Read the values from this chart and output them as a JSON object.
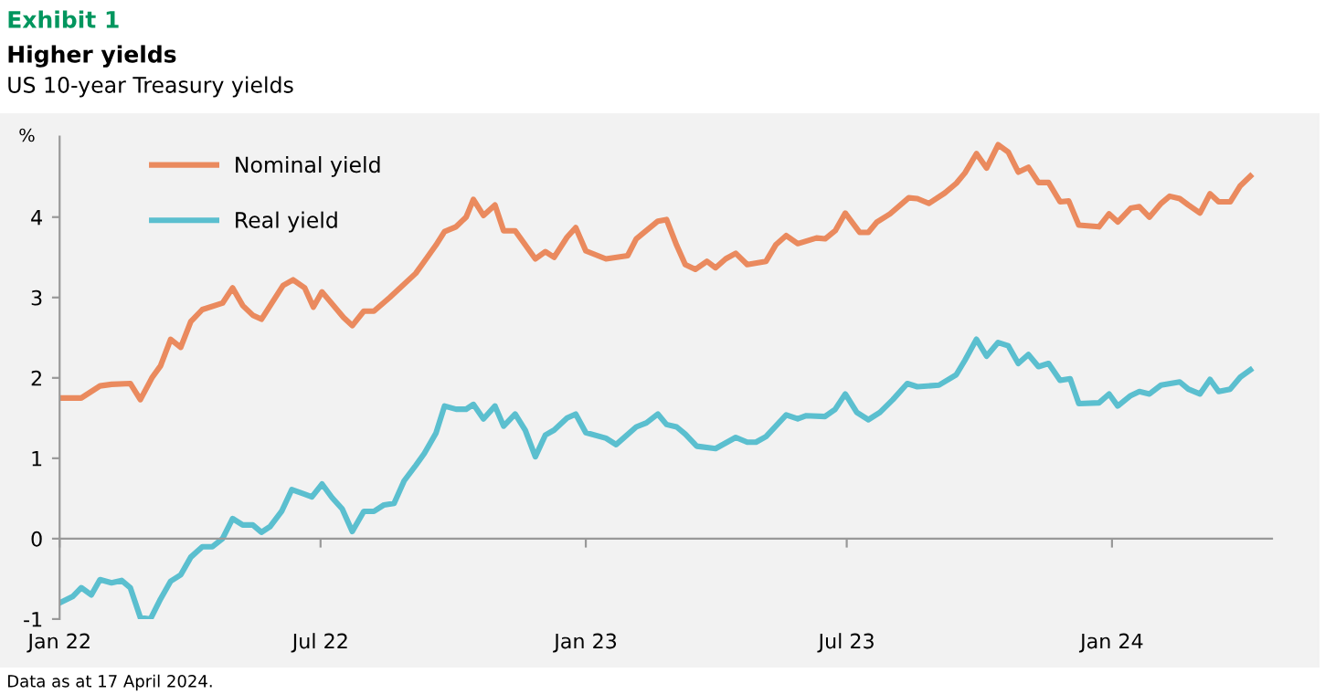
{
  "chart_data": {
    "type": "line",
    "title": "Higher yields",
    "subtitle": "US 10-year Treasury yields",
    "ylabel": "%",
    "annotations": [
      "Exhibit 1",
      "Data as at 17 April 2024."
    ],
    "legend": "top left",
    "marker": "none",
    "line_style": "solid",
    "xlim": [
      "2022-01-01",
      "2024-04-21"
    ],
    "xticks": [
      {
        "value": "2022-01-01",
        "label": "Jan 22"
      },
      {
        "value": "2022-07-01",
        "label": "Jul 22"
      },
      {
        "value": "2023-01-01",
        "label": "Jan 23"
      },
      {
        "value": "2023-07-01",
        "label": "Jul 23"
      },
      {
        "value": "2024-01-01",
        "label": "Jan 24"
      }
    ],
    "ylim": [
      -1,
      5
    ],
    "yticks": [
      -1,
      0,
      1,
      2,
      3,
      4
    ],
    "series": [
      {
        "name": "Nominal yield",
        "color": "#ea8a5e",
        "x": [
          "2022-01-01",
          "2022-01-16",
          "2022-01-29",
          "2022-02-06",
          "2022-02-19",
          "2022-02-26",
          "2022-03-06",
          "2022-03-12",
          "2022-03-19",
          "2022-03-26",
          "2022-04-02",
          "2022-04-10",
          "2022-04-24",
          "2022-05-01",
          "2022-05-08",
          "2022-05-15",
          "2022-05-21",
          "2022-06-05",
          "2022-06-12",
          "2022-06-20",
          "2022-06-26",
          "2022-07-02",
          "2022-07-17",
          "2022-07-23",
          "2022-07-31",
          "2022-08-07",
          "2022-08-18",
          "2022-09-05",
          "2022-09-11",
          "2022-09-19",
          "2022-09-25",
          "2022-10-03",
          "2022-10-10",
          "2022-10-15",
          "2022-10-22",
          "2022-10-30",
          "2022-11-05",
          "2022-11-13",
          "2022-11-27",
          "2022-12-04",
          "2022-12-10",
          "2022-12-19",
          "2022-12-25",
          "2023-01-01",
          "2023-01-15",
          "2023-01-30",
          "2023-02-05",
          "2023-02-20",
          "2023-02-26",
          "2023-03-05",
          "2023-03-11",
          "2023-03-18",
          "2023-03-26",
          "2023-04-01",
          "2023-04-08",
          "2023-04-15",
          "2023-04-23",
          "2023-05-06",
          "2023-05-13",
          "2023-05-20",
          "2023-05-28",
          "2023-06-10",
          "2023-06-16",
          "2023-06-23",
          "2023-06-30",
          "2023-07-10",
          "2023-07-16",
          "2023-07-22",
          "2023-07-31",
          "2023-08-13",
          "2023-08-19",
          "2023-08-27",
          "2023-09-07",
          "2023-09-15",
          "2023-09-21",
          "2023-09-29",
          "2023-10-06",
          "2023-10-14",
          "2023-10-21",
          "2023-10-28",
          "2023-11-04",
          "2023-11-11",
          "2023-11-18",
          "2023-11-26",
          "2023-12-02",
          "2023-12-09",
          "2023-12-23",
          "2023-12-30",
          "2024-01-05",
          "2024-01-14",
          "2024-01-20",
          "2024-01-27",
          "2024-02-04",
          "2024-02-10",
          "2024-02-17",
          "2024-02-23",
          "2024-03-02",
          "2024-03-09",
          "2024-03-15",
          "2024-03-23",
          "2024-03-30",
          "2024-04-06"
        ],
        "values": [
          1.75,
          1.75,
          1.9,
          1.92,
          1.93,
          1.73,
          2.0,
          2.15,
          2.48,
          2.38,
          2.7,
          2.85,
          2.93,
          3.12,
          2.9,
          2.78,
          2.73,
          3.15,
          3.22,
          3.12,
          2.88,
          3.07,
          2.75,
          2.65,
          2.83,
          2.83,
          3.0,
          3.3,
          3.45,
          3.65,
          3.82,
          3.88,
          4.0,
          4.22,
          4.02,
          4.15,
          3.83,
          3.83,
          3.48,
          3.57,
          3.5,
          3.75,
          3.87,
          3.58,
          3.48,
          3.52,
          3.73,
          3.95,
          3.97,
          3.65,
          3.41,
          3.35,
          3.45,
          3.37,
          3.48,
          3.55,
          3.41,
          3.45,
          3.66,
          3.77,
          3.67,
          3.74,
          3.73,
          3.83,
          4.05,
          3.81,
          3.81,
          3.94,
          4.04,
          4.24,
          4.23,
          4.17,
          4.3,
          4.42,
          4.55,
          4.79,
          4.61,
          4.9,
          4.81,
          4.56,
          4.62,
          4.43,
          4.43,
          4.19,
          4.2,
          3.9,
          3.88,
          4.04,
          3.94,
          4.11,
          4.13,
          4.0,
          4.17,
          4.26,
          4.23,
          4.15,
          4.05,
          4.29,
          4.19,
          4.19,
          4.39,
          4.51
        ]
      },
      {
        "name": "Real yield",
        "color": "#5bbfcf",
        "x": [
          "2022-01-01",
          "2022-01-10",
          "2022-01-16",
          "2022-01-23",
          "2022-01-29",
          "2022-02-06",
          "2022-02-13",
          "2022-02-19",
          "2022-02-26",
          "2022-03-05",
          "2022-03-12",
          "2022-03-19",
          "2022-03-26",
          "2022-04-02",
          "2022-04-10",
          "2022-04-17",
          "2022-04-24",
          "2022-05-01",
          "2022-05-08",
          "2022-05-15",
          "2022-05-21",
          "2022-05-27",
          "2022-06-04",
          "2022-06-11",
          "2022-06-19",
          "2022-06-25",
          "2022-07-02",
          "2022-07-09",
          "2022-07-16",
          "2022-07-23",
          "2022-07-31",
          "2022-08-07",
          "2022-08-14",
          "2022-08-21",
          "2022-08-28",
          "2022-09-05",
          "2022-09-11",
          "2022-09-19",
          "2022-09-25",
          "2022-10-03",
          "2022-10-10",
          "2022-10-15",
          "2022-10-22",
          "2022-10-30",
          "2022-11-05",
          "2022-11-13",
          "2022-11-20",
          "2022-11-27",
          "2022-12-04",
          "2022-12-10",
          "2022-12-19",
          "2022-12-25",
          "2023-01-01",
          "2023-01-15",
          "2023-01-22",
          "2023-02-05",
          "2023-02-12",
          "2023-02-20",
          "2023-02-26",
          "2023-03-05",
          "2023-03-11",
          "2023-03-19",
          "2023-04-01",
          "2023-04-15",
          "2023-04-23",
          "2023-04-29",
          "2023-05-06",
          "2023-05-20",
          "2023-05-28",
          "2023-06-03",
          "2023-06-16",
          "2023-06-23",
          "2023-06-30",
          "2023-07-08",
          "2023-07-16",
          "2023-07-24",
          "2023-08-02",
          "2023-08-12",
          "2023-08-19",
          "2023-09-03",
          "2023-09-15",
          "2023-09-21",
          "2023-09-29",
          "2023-10-06",
          "2023-10-14",
          "2023-10-21",
          "2023-10-28",
          "2023-11-04",
          "2023-11-11",
          "2023-11-18",
          "2023-11-26",
          "2023-12-03",
          "2023-12-09",
          "2023-12-23",
          "2023-12-30",
          "2024-01-05",
          "2024-01-14",
          "2024-01-20",
          "2024-01-27",
          "2024-02-04",
          "2024-02-17",
          "2024-02-23",
          "2024-03-02",
          "2024-03-09",
          "2024-03-15",
          "2024-03-23",
          "2024-03-30",
          "2024-04-06"
        ],
        "values": [
          -0.8,
          -0.72,
          -0.61,
          -0.7,
          -0.51,
          -0.55,
          -0.52,
          -0.61,
          -0.98,
          -1.0,
          -0.75,
          -0.53,
          -0.45,
          -0.23,
          -0.1,
          -0.1,
          0.0,
          0.25,
          0.17,
          0.17,
          0.08,
          0.15,
          0.34,
          0.61,
          0.56,
          0.52,
          0.68,
          0.51,
          0.37,
          0.09,
          0.34,
          0.34,
          0.42,
          0.44,
          0.72,
          0.91,
          1.06,
          1.31,
          1.65,
          1.61,
          1.61,
          1.67,
          1.49,
          1.65,
          1.4,
          1.55,
          1.35,
          1.02,
          1.29,
          1.35,
          1.5,
          1.55,
          1.32,
          1.25,
          1.17,
          1.39,
          1.44,
          1.55,
          1.42,
          1.39,
          1.3,
          1.15,
          1.12,
          1.26,
          1.2,
          1.2,
          1.27,
          1.54,
          1.49,
          1.53,
          1.52,
          1.61,
          1.8,
          1.57,
          1.48,
          1.57,
          1.73,
          1.93,
          1.89,
          1.91,
          2.04,
          2.22,
          2.48,
          2.27,
          2.44,
          2.4,
          2.18,
          2.29,
          2.14,
          2.18,
          1.97,
          1.99,
          1.68,
          1.69,
          1.8,
          1.65,
          1.78,
          1.83,
          1.8,
          1.91,
          1.95,
          1.86,
          1.8,
          1.98,
          1.83,
          1.86,
          2.01,
          2.1
        ]
      }
    ]
  }
}
